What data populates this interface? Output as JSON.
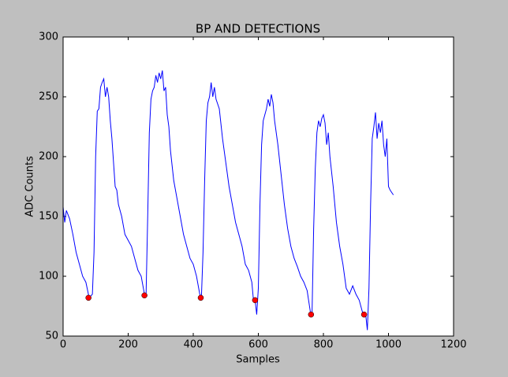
{
  "chart_data": {
    "type": "line",
    "title": "BP AND DETECTIONS",
    "x_label": "Samples",
    "y_label": "ADC Counts",
    "xlim": [
      0,
      1200
    ],
    "xticks": [
      0,
      200,
      400,
      600,
      800,
      1000,
      1200
    ],
    "ylim": [
      50,
      300
    ],
    "yticks": [
      50,
      100,
      150,
      200,
      250,
      300
    ],
    "series": [
      {
        "color": "#0000ff",
        "x": [
          0,
          5,
          10,
          20,
          30,
          40,
          50,
          60,
          70,
          80,
          90,
          95,
          100,
          105,
          110,
          115,
          120,
          125,
          130,
          135,
          140,
          145,
          150,
          155,
          160,
          165,
          170,
          180,
          190,
          200,
          210,
          220,
          230,
          240,
          250,
          255,
          260,
          265,
          270,
          275,
          280,
          285,
          290,
          295,
          300,
          305,
          310,
          315,
          320,
          325,
          330,
          340,
          350,
          360,
          370,
          380,
          390,
          400,
          410,
          420,
          425,
          430,
          435,
          440,
          445,
          450,
          455,
          460,
          465,
          470,
          480,
          490,
          500,
          510,
          520,
          530,
          540,
          550,
          560,
          570,
          580,
          585,
          590,
          595,
          600,
          605,
          610,
          615,
          620,
          625,
          630,
          635,
          640,
          645,
          650,
          660,
          670,
          680,
          690,
          700,
          710,
          720,
          730,
          740,
          750,
          760,
          765,
          770,
          775,
          780,
          785,
          790,
          795,
          800,
          805,
          810,
          815,
          820,
          830,
          840,
          850,
          860,
          870,
          880,
          890,
          900,
          910,
          920,
          930,
          935,
          940,
          945,
          950,
          955,
          960,
          965,
          970,
          975,
          980,
          985,
          990,
          995,
          1000,
          1005,
          1010,
          1015
        ],
        "values": [
          158,
          145,
          155,
          148,
          135,
          120,
          110,
          100,
          95,
          82,
          85,
          120,
          200,
          238,
          240,
          258,
          262,
          265,
          250,
          258,
          250,
          230,
          215,
          195,
          175,
          172,
          160,
          150,
          135,
          130,
          125,
          115,
          105,
          100,
          85,
          85,
          150,
          220,
          248,
          255,
          258,
          268,
          262,
          270,
          265,
          272,
          255,
          258,
          235,
          225,
          205,
          180,
          165,
          150,
          135,
          125,
          115,
          110,
          100,
          85,
          82,
          120,
          180,
          230,
          245,
          250,
          262,
          250,
          258,
          248,
          240,
          215,
          195,
          175,
          160,
          145,
          135,
          125,
          110,
          105,
          95,
          80,
          80,
          68,
          90,
          160,
          210,
          230,
          235,
          240,
          248,
          242,
          252,
          245,
          230,
          210,
          185,
          160,
          140,
          125,
          115,
          108,
          100,
          95,
          88,
          70,
          68,
          140,
          190,
          220,
          230,
          225,
          232,
          235,
          228,
          210,
          220,
          200,
          175,
          145,
          125,
          110,
          90,
          85,
          92,
          85,
          80,
          70,
          68,
          55,
          90,
          160,
          215,
          225,
          237,
          215,
          228,
          220,
          230,
          210,
          200,
          215,
          175,
          172,
          170,
          168
        ]
      },
      {
        "type": "scatter",
        "color": "#ff0000",
        "x": [
          78,
          250,
          423,
          590,
          762,
          925
        ],
        "values": [
          82,
          84,
          82,
          80,
          68,
          68
        ]
      }
    ]
  }
}
